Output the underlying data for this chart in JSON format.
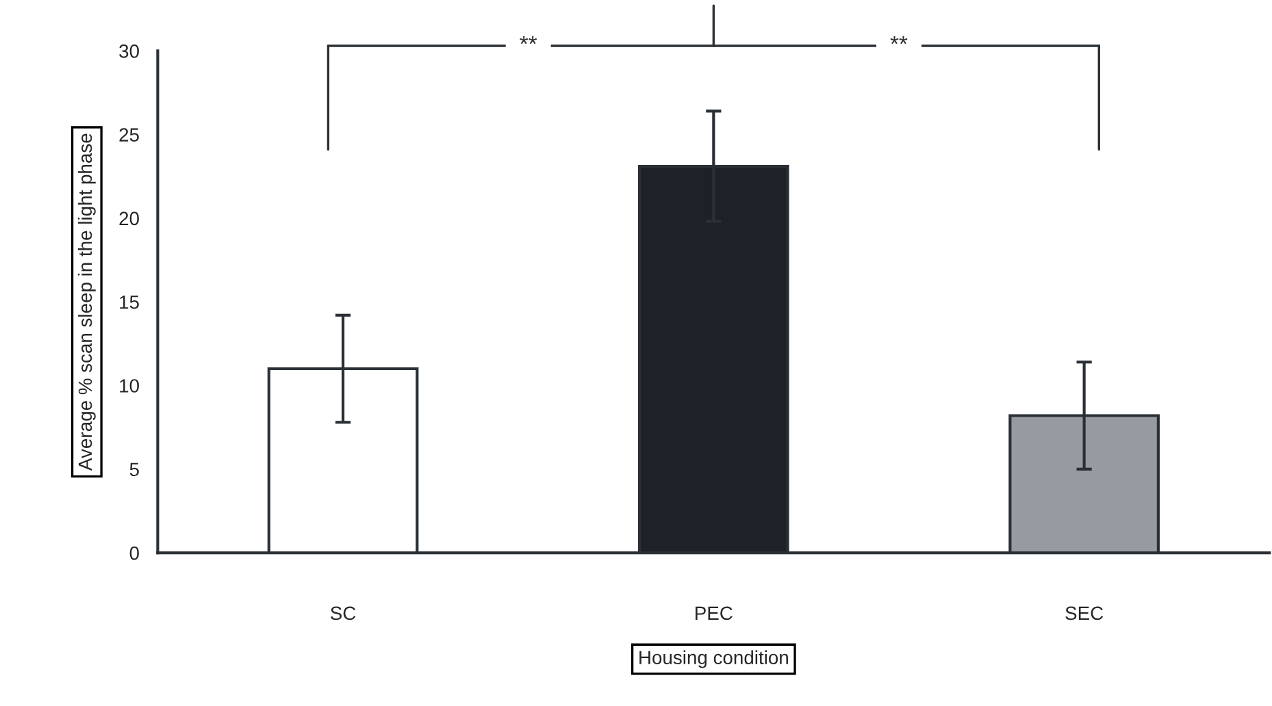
{
  "chart_data": {
    "type": "bar",
    "xlabel": "Housing condition",
    "ylabel": "Average % scan sleep in the light phase",
    "categories": [
      "SC",
      "PEC",
      "SEC"
    ],
    "values": [
      11.0,
      23.1,
      8.2
    ],
    "errors": [
      3.2,
      3.3,
      3.2
    ],
    "colors": [
      "#ffffff",
      "#1f2128",
      "#989aa1"
    ],
    "ylim": [
      0,
      30
    ],
    "yticks": [
      0,
      5,
      10,
      15,
      20,
      25,
      30
    ],
    "annotations": [
      "**",
      "**"
    ],
    "grid": false
  }
}
